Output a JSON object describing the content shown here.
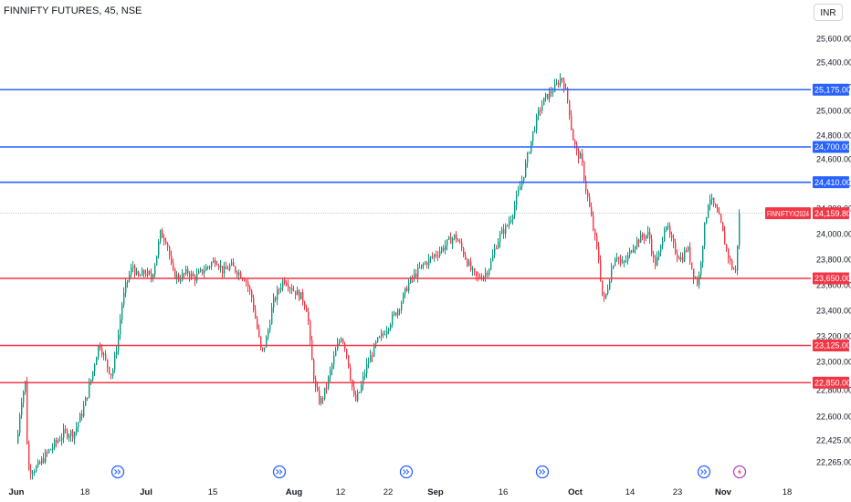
{
  "header": {
    "title": "FINNIFTY FUTURES, 45, NSE",
    "currency": "INR"
  },
  "colors": {
    "up": "#089981",
    "down": "#f23645",
    "resistance": "#2962ff",
    "support": "#f23645",
    "current_bg": "#f23645",
    "current_line": "#c7c9cf",
    "event_icon": "#2962ff",
    "flash_icon": "#ab47bc"
  },
  "chart_data": {
    "type": "candlestick",
    "title": "FINNIFTY FUTURES, 45, NSE",
    "y_scale": [
      {
        "label": "25,600.00",
        "value": 25600
      },
      {
        "label": "25,400.00",
        "value": 25400
      },
      {
        "label": "25,200.00",
        "value": 25200
      },
      {
        "label": "25,000.00",
        "value": 25000
      },
      {
        "label": "24,800.00",
        "value": 24800
      },
      {
        "label": "24,600.00",
        "value": 24600
      },
      {
        "label": "24,400.00",
        "value": 24400
      },
      {
        "label": "24,200.00",
        "value": 24200
      },
      {
        "label": "24,000.00",
        "value": 24000
      },
      {
        "label": "23,800.00",
        "value": 23800
      },
      {
        "label": "23,600.00",
        "value": 23600
      },
      {
        "label": "23,400.00",
        "value": 23400
      },
      {
        "label": "23,200.00",
        "value": 23200
      },
      {
        "label": "23,000.00",
        "value": 23000
      },
      {
        "label": "22,800.00",
        "value": 22800
      },
      {
        "label": "22,600.00",
        "value": 22600
      },
      {
        "label": "22,425.00",
        "value": 22425
      },
      {
        "label": "22,265.00",
        "value": 22265
      }
    ],
    "x_ticks": [
      {
        "label": "Jun",
        "bold": true,
        "x": 18
      },
      {
        "label": "18",
        "bold": false,
        "x": 93
      },
      {
        "label": "Jul",
        "bold": true,
        "x": 160
      },
      {
        "label": "15",
        "bold": false,
        "x": 233
      },
      {
        "label": "Aug",
        "bold": true,
        "x": 322
      },
      {
        "label": "12",
        "bold": false,
        "x": 373
      },
      {
        "label": "22",
        "bold": false,
        "x": 425
      },
      {
        "label": "Sep",
        "bold": true,
        "x": 477
      },
      {
        "label": "16",
        "bold": false,
        "x": 551
      },
      {
        "label": "Oct",
        "bold": true,
        "x": 630
      },
      {
        "label": "14",
        "bold": false,
        "x": 690
      },
      {
        "label": "23",
        "bold": false,
        "x": 742
      },
      {
        "label": "Nov",
        "bold": true,
        "x": 792
      },
      {
        "label": "18",
        "bold": false,
        "x": 862
      }
    ],
    "levels": [
      {
        "label": "25,175.00",
        "value": 25175,
        "kind": "resistance"
      },
      {
        "label": "24,700.00",
        "value": 24700,
        "kind": "resistance"
      },
      {
        "label": "24,410.00",
        "value": 24410,
        "kind": "resistance"
      },
      {
        "label": "23,650.00",
        "value": 23650,
        "kind": "support"
      },
      {
        "label": "23,125.00",
        "value": 23125,
        "kind": "support"
      },
      {
        "label": "22,850.00",
        "value": 22850,
        "kind": "support"
      }
    ],
    "current": {
      "symbol": "FINNIFTYX2024",
      "label": "24,159.80",
      "value": 24159.8
    },
    "path": [
      [
        18,
        22400
      ],
      [
        22,
        22700
      ],
      [
        27,
        22850
      ],
      [
        30,
        22200
      ],
      [
        40,
        22220
      ],
      [
        50,
        22320
      ],
      [
        60,
        22400
      ],
      [
        70,
        22480
      ],
      [
        80,
        22470
      ],
      [
        90,
        22640
      ],
      [
        100,
        22900
      ],
      [
        108,
        23150
      ],
      [
        115,
        23000
      ],
      [
        122,
        22900
      ],
      [
        128,
        23150
      ],
      [
        133,
        23450
      ],
      [
        138,
        23620
      ],
      [
        145,
        23750
      ],
      [
        150,
        23650
      ],
      [
        158,
        23700
      ],
      [
        165,
        23650
      ],
      [
        170,
        23800
      ],
      [
        175,
        24000
      ],
      [
        182,
        23950
      ],
      [
        188,
        23700
      ],
      [
        195,
        23650
      ],
      [
        205,
        23700
      ],
      [
        212,
        23650
      ],
      [
        220,
        23700
      ],
      [
        228,
        23750
      ],
      [
        236,
        23800
      ],
      [
        244,
        23700
      ],
      [
        252,
        23750
      ],
      [
        260,
        23700
      ],
      [
        268,
        23650
      ],
      [
        275,
        23500
      ],
      [
        280,
        23300
      ],
      [
        286,
        23050
      ],
      [
        292,
        23200
      ],
      [
        298,
        23450
      ],
      [
        304,
        23550
      ],
      [
        310,
        23650
      ],
      [
        316,
        23600
      ],
      [
        322,
        23550
      ],
      [
        330,
        23500
      ],
      [
        336,
        23400
      ],
      [
        340,
        23050
      ],
      [
        345,
        22800
      ],
      [
        350,
        22700
      ],
      [
        356,
        22800
      ],
      [
        362,
        22950
      ],
      [
        368,
        23100
      ],
      [
        373,
        23200
      ],
      [
        378,
        23100
      ],
      [
        383,
        22900
      ],
      [
        388,
        22700
      ],
      [
        394,
        22800
      ],
      [
        400,
        22950
      ],
      [
        406,
        23050
      ],
      [
        412,
        23150
      ],
      [
        418,
        23200
      ],
      [
        424,
        23280
      ],
      [
        430,
        23350
      ],
      [
        438,
        23450
      ],
      [
        446,
        23600
      ],
      [
        454,
        23680
      ],
      [
        462,
        23750
      ],
      [
        470,
        23800
      ],
      [
        478,
        23850
      ],
      [
        486,
        23900
      ],
      [
        492,
        23950
      ],
      [
        498,
        23980
      ],
      [
        504,
        23900
      ],
      [
        510,
        23800
      ],
      [
        516,
        23700
      ],
      [
        522,
        23650
      ],
      [
        530,
        23680
      ],
      [
        536,
        23750
      ],
      [
        542,
        23900
      ],
      [
        548,
        24000
      ],
      [
        554,
        24050
      ],
      [
        560,
        24150
      ],
      [
        566,
        24300
      ],
      [
        572,
        24450
      ],
      [
        578,
        24650
      ],
      [
        584,
        24850
      ],
      [
        590,
        25000
      ],
      [
        596,
        25100
      ],
      [
        602,
        25150
      ],
      [
        608,
        25200
      ],
      [
        614,
        25280
      ],
      [
        618,
        25200
      ],
      [
        622,
        25050
      ],
      [
        626,
        24800
      ],
      [
        631,
        24650
      ],
      [
        636,
        24600
      ],
      [
        640,
        24400
      ],
      [
        645,
        24200
      ],
      [
        650,
        24000
      ],
      [
        655,
        23800
      ],
      [
        660,
        23450
      ],
      [
        664,
        23550
      ],
      [
        668,
        23700
      ],
      [
        674,
        23850
      ],
      [
        680,
        23750
      ],
      [
        686,
        23800
      ],
      [
        692,
        23900
      ],
      [
        698,
        23950
      ],
      [
        704,
        23980
      ],
      [
        710,
        24000
      ],
      [
        716,
        23750
      ],
      [
        722,
        23850
      ],
      [
        728,
        24100
      ],
      [
        734,
        23950
      ],
      [
        740,
        23850
      ],
      [
        746,
        23800
      ],
      [
        752,
        23900
      ],
      [
        758,
        23700
      ],
      [
        764,
        23600
      ],
      [
        770,
        24000
      ],
      [
        776,
        24300
      ],
      [
        782,
        24200
      ],
      [
        788,
        24100
      ],
      [
        794,
        23900
      ],
      [
        800,
        23750
      ],
      [
        805,
        23700
      ],
      [
        809,
        24150
      ]
    ]
  },
  "events": [
    {
      "kind": "dividend",
      "x": 129
    },
    {
      "kind": "dividend",
      "x": 306
    },
    {
      "kind": "dividend",
      "x": 445
    },
    {
      "kind": "dividend",
      "x": 594
    },
    {
      "kind": "dividend",
      "x": 771
    },
    {
      "kind": "flash",
      "x": 810
    }
  ]
}
